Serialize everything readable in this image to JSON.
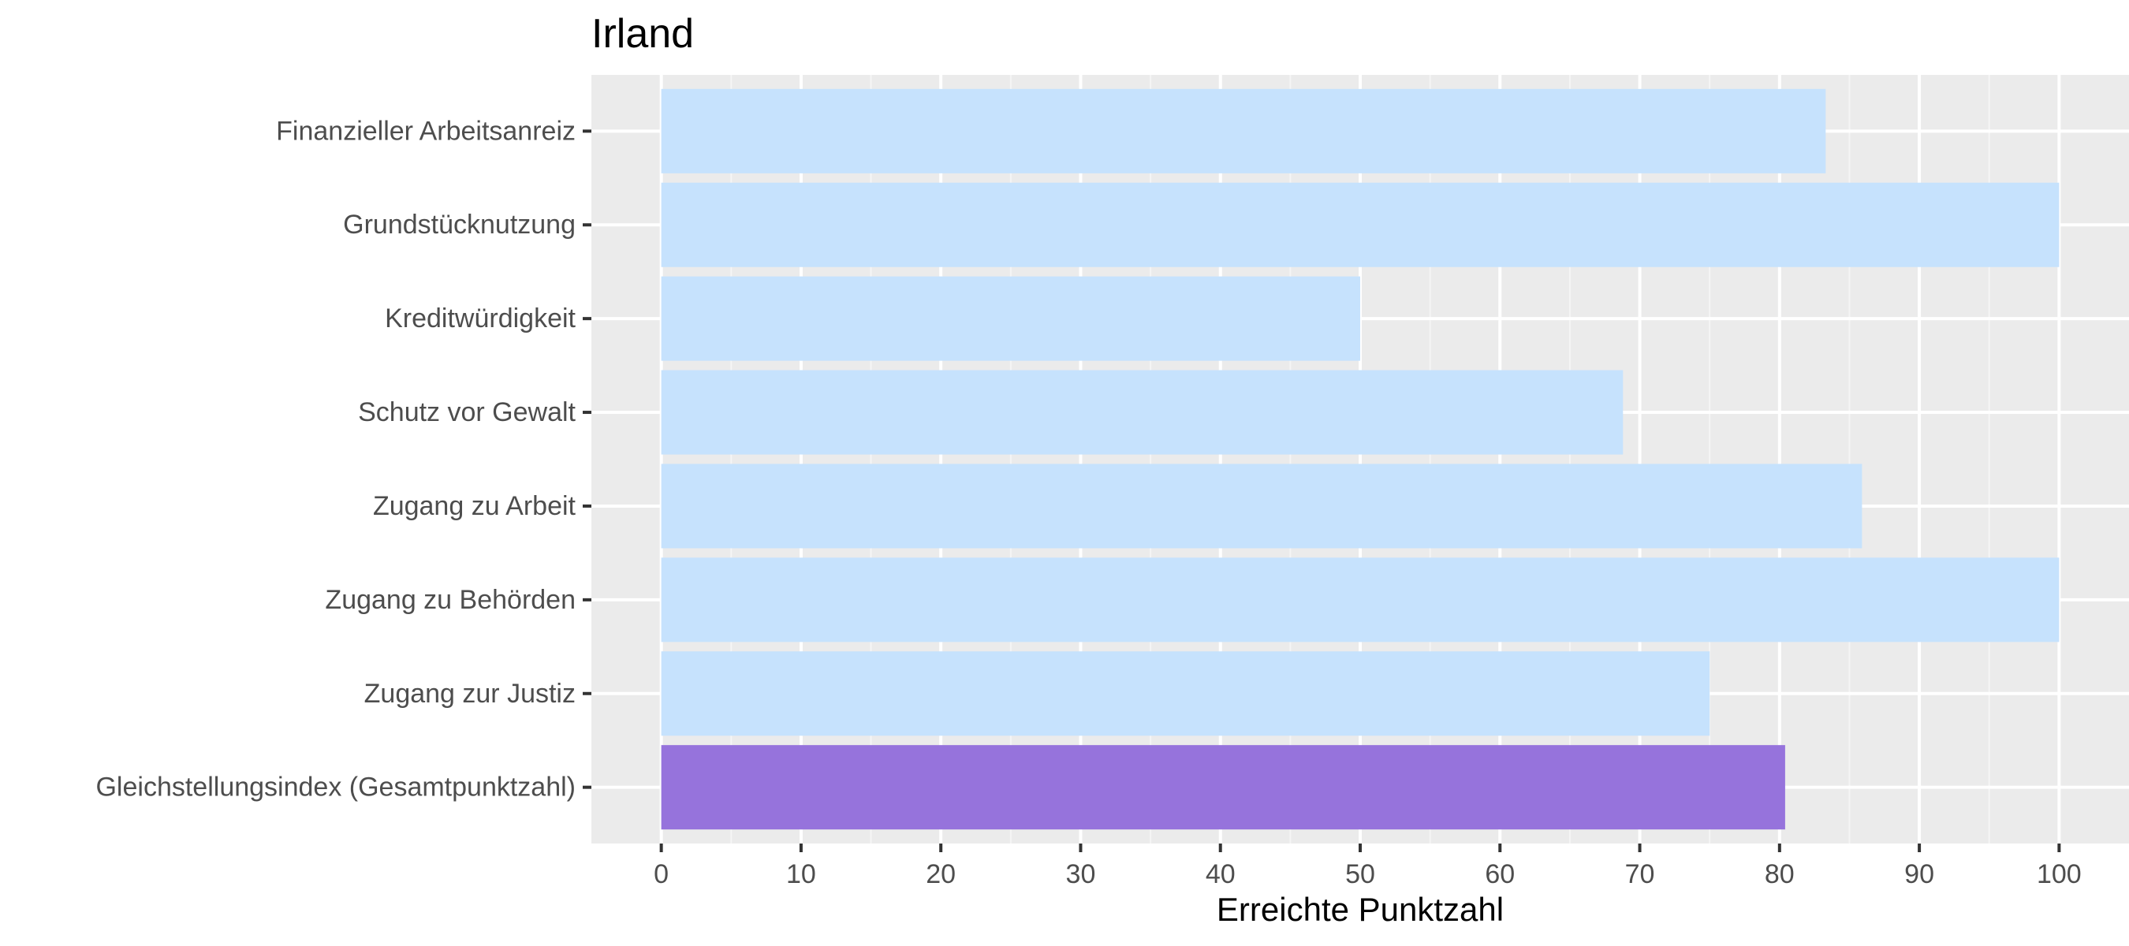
{
  "chart_data": {
    "type": "bar",
    "orientation": "horizontal",
    "title": "Irland",
    "xlabel": "Erreichte Punktzahl",
    "ylabel": "",
    "xlim": [
      -5,
      105
    ],
    "xticks": [
      0,
      10,
      20,
      30,
      40,
      50,
      60,
      70,
      80,
      90,
      100
    ],
    "grid": true,
    "legend": "none",
    "categories": [
      "Finanzieller Arbeitsanreiz",
      "Grundstücknutzung",
      "Kreditwürdigkeit",
      "Schutz vor Gewalt",
      "Zugang zu Arbeit",
      "Zugang zu Behörden",
      "Zugang zur Justiz",
      "Gleichstellungsindex (Gesamtpunktzahl)"
    ],
    "values": [
      83.3,
      100,
      50,
      68.8,
      85.9,
      100,
      75,
      80.4
    ],
    "bar_colors": [
      "#c6e2fd",
      "#c6e2fd",
      "#c6e2fd",
      "#c6e2fd",
      "#c6e2fd",
      "#c6e2fd",
      "#c6e2fd",
      "#9673dc"
    ]
  },
  "colors": {
    "panel_background": "#ebebeb",
    "grid_major": "#ffffff",
    "grid_minor": "#f5f5f5",
    "axis_text": "#4d4d4d",
    "tick_mark": "#333333"
  }
}
